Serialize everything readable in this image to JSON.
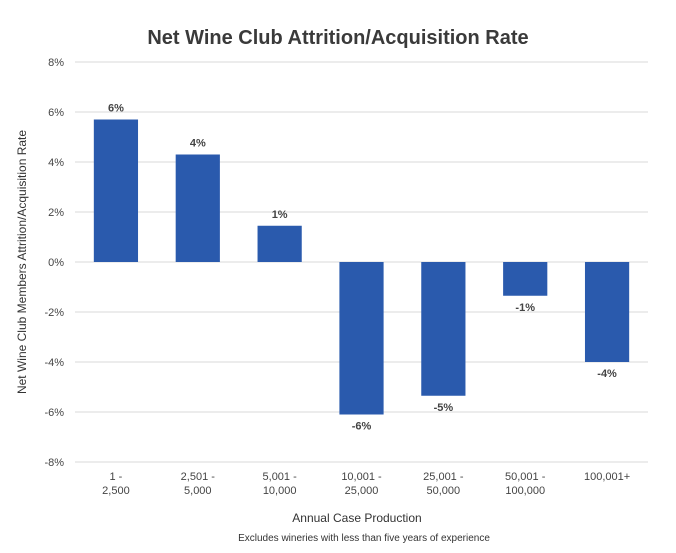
{
  "chart_data": {
    "type": "bar",
    "title": "Net Wine Club Attrition/Acquisition Rate",
    "xlabel": "Annual Case Production",
    "ylabel": "Net Wine Club Members Attrition/Acquisition Rate",
    "footnote": "Excludes wineries with less than five years of experience",
    "categories": [
      [
        "1 -",
        "2,500"
      ],
      [
        "2,501 -",
        "5,000"
      ],
      [
        "5,001 -",
        "10,000"
      ],
      [
        "10,001 -",
        "25,000"
      ],
      [
        "25,001 -",
        "50,000"
      ],
      [
        "50,001 -",
        "100,000"
      ],
      [
        "100,001+"
      ]
    ],
    "values": [
      5.7,
      4.3,
      1.45,
      -6.1,
      -5.35,
      -1.35,
      -4.0
    ],
    "data_labels": [
      "6%",
      "4%",
      "1%",
      "-6%",
      "-5%",
      "-1%",
      "-4%"
    ],
    "ylim": [
      -8,
      8
    ],
    "yticks": [
      8,
      6,
      4,
      2,
      0,
      -2,
      -4,
      -6,
      -8
    ],
    "ytick_labels": [
      "8%",
      "6%",
      "4%",
      "2%",
      "0%",
      "-2%",
      "-4%",
      "-6%",
      "-8%"
    ],
    "grid": true,
    "bar_color": "#2a5aad"
  }
}
